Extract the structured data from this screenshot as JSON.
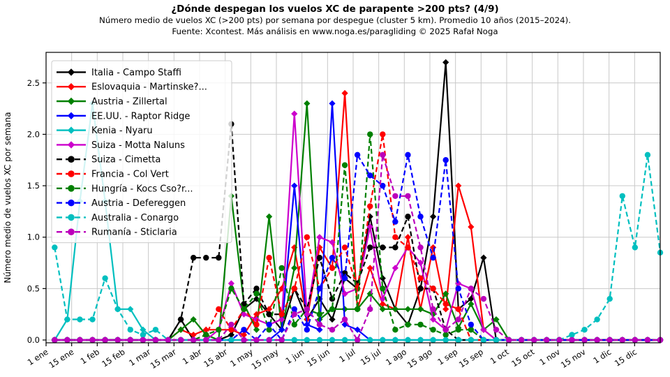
{
  "title": "¿Dónde despegan los vuelos XC de parapente >200 pts? (4/9)",
  "subtitle1": "Número medio de vuelos XC (>200 pts) por semana por despegue (cluster 5 km). Promedio 10 años (2015–2024).",
  "subtitle2": "Fuente: Xcontest. Más análisis en www.noga.es/paragliding © 2025 Rafał Noga",
  "ylabel": "Número medio de vuelos XC por semana",
  "chart_data": {
    "type": "line",
    "grid": true,
    "legend_position": "upper left",
    "ylim": [
      0,
      2.8
    ],
    "y_tick_labels": [
      "0.0",
      "0.5",
      "1.0",
      "1.5",
      "2.0",
      "2.5"
    ],
    "x_tick_labels": [
      "1 ene",
      "15 ene",
      "1 feb",
      "15 feb",
      "1 mar",
      "15 mar",
      "1 abr",
      "15 abr",
      "1 may",
      "15 may",
      "1 jun",
      "15 jun",
      "1 jul",
      "15 jul",
      "1 ago",
      "15 ago",
      "1 sep",
      "15 sep",
      "1 oct",
      "15 oct",
      "1 nov",
      "15 nov",
      "1 dic",
      "15 dic"
    ],
    "x": [
      "1 ene",
      "8 ene",
      "15 ene",
      "22 ene",
      "1 feb",
      "8 feb",
      "15 feb",
      "22 feb",
      "1 mar",
      "8 mar",
      "15 mar",
      "22 mar",
      "1 abr",
      "8 abr",
      "15 abr",
      "22 abr",
      "1 may",
      "8 may",
      "15 may",
      "22 may",
      "1 jun",
      "8 jun",
      "15 jun",
      "22 jun",
      "1 jul",
      "8 jul",
      "15 jul",
      "22 jul",
      "1 ago",
      "8 ago",
      "15 ago",
      "22 ago",
      "1 sep",
      "8 sep",
      "15 sep",
      "22 sep",
      "1 oct",
      "8 oct",
      "15 oct",
      "22 oct",
      "1 nov",
      "8 nov",
      "15 nov",
      "22 nov",
      "1 dic",
      "8 dic",
      "15 dic",
      "22 dic",
      "29 dic"
    ],
    "series": [
      {
        "name": "Italia - Campo Staffi",
        "color": "#000000",
        "style": "solid",
        "marker": "diamond",
        "values": [
          0,
          0,
          0,
          0,
          0,
          0,
          0,
          0,
          0,
          0,
          0.2,
          0,
          0,
          0,
          0.05,
          0.3,
          0.4,
          0.25,
          0.1,
          0.5,
          0.2,
          0.4,
          0.2,
          0.6,
          0.5,
          1.2,
          0.6,
          0.3,
          0.15,
          0.5,
          1.2,
          2.7,
          0.3,
          0.4,
          0.8,
          0,
          0,
          0,
          0,
          0,
          0,
          0,
          0,
          0,
          0,
          0,
          0,
          0,
          0
        ]
      },
      {
        "name": "Eslovaquia - Martinske?...",
        "color": "#ff0000",
        "style": "solid",
        "marker": "diamond",
        "values": [
          0,
          0,
          0,
          0,
          0,
          0,
          0,
          0,
          0,
          0,
          0.1,
          0.05,
          0.1,
          0.1,
          0.1,
          0.05,
          0.25,
          0.3,
          0.5,
          0.9,
          0.2,
          0.9,
          0.7,
          2.4,
          0.3,
          0.7,
          0.35,
          0.3,
          1.0,
          0.3,
          0.9,
          0.3,
          1.5,
          1.1,
          0.1,
          0,
          0,
          0,
          0,
          0,
          0,
          0,
          0,
          0,
          0,
          0,
          0,
          0,
          0
        ]
      },
      {
        "name": "Austria - Zillertal",
        "color": "#008000",
        "style": "solid",
        "marker": "diamond",
        "values": [
          0,
          0,
          0,
          0,
          0,
          0,
          0,
          0,
          0,
          0,
          0.1,
          0.2,
          0.05,
          0,
          1.4,
          0.35,
          0.1,
          1.2,
          0.1,
          0.7,
          2.3,
          0.2,
          0.3,
          0.3,
          0.3,
          0.45,
          0.3,
          0.3,
          0.3,
          0.3,
          0.25,
          0.45,
          0.12,
          0.35,
          0.1,
          0.2,
          0,
          0,
          0,
          0,
          0,
          0,
          0,
          0,
          0,
          0,
          0,
          0,
          0
        ]
      },
      {
        "name": "EE.UU. - Raptor Ridge",
        "color": "#0000ff",
        "style": "solid",
        "marker": "diamond",
        "values": [
          0,
          0,
          0,
          0,
          0,
          0,
          0,
          0,
          0,
          0,
          0,
          0,
          0,
          0,
          0,
          0,
          0,
          0,
          0.1,
          1.5,
          0.15,
          0.1,
          2.3,
          0.15,
          0.1,
          0,
          0,
          0,
          0,
          0,
          0,
          0,
          0,
          0,
          0,
          0,
          0,
          0,
          0,
          0,
          0,
          0,
          0,
          0,
          0,
          0,
          0,
          0,
          0
        ]
      },
      {
        "name": "Kenia - Nyaru",
        "color": "#00bfbf",
        "style": "solid",
        "marker": "diamond",
        "values": [
          0,
          0.2,
          1.35,
          2.3,
          1.35,
          0.3,
          0.3,
          0.1,
          0,
          0,
          0,
          0,
          0,
          0,
          0,
          0,
          0,
          0,
          0,
          0,
          0,
          0,
          0,
          0,
          0,
          0,
          0,
          0,
          0,
          0,
          0,
          0,
          0,
          0,
          0,
          0,
          0,
          0,
          0,
          0,
          0,
          0,
          0,
          0,
          0,
          0,
          0,
          0,
          0
        ]
      },
      {
        "name": "Suiza - Motta Naluns",
        "color": "#cc00cc",
        "style": "solid",
        "marker": "diamond",
        "values": [
          0,
          0,
          0,
          0,
          0,
          0,
          0,
          0,
          0,
          0,
          0,
          0,
          0,
          0.1,
          0.55,
          0.25,
          0.2,
          0.15,
          0.2,
          2.2,
          0.25,
          1.0,
          0.95,
          0.45,
          0.5,
          1.1,
          0.4,
          0.7,
          0.9,
          0.75,
          0.2,
          0.1,
          0.55,
          0.5,
          0.1,
          0,
          0,
          0,
          0,
          0,
          0,
          0,
          0,
          0,
          0,
          0,
          0,
          0,
          0
        ]
      },
      {
        "name": "Suiza - Cimetta",
        "color": "#000000",
        "style": "dashed",
        "marker": "circle",
        "values": [
          0,
          0,
          0,
          0,
          0,
          0,
          0,
          0,
          0,
          0,
          0.2,
          0.8,
          0.8,
          0.8,
          2.1,
          0.35,
          0.5,
          0.25,
          0.25,
          0.5,
          0.3,
          0.8,
          0.4,
          0.65,
          0.55,
          0.9,
          0.9,
          0.9,
          1.2,
          0.5,
          0.5,
          0.1,
          0,
          0,
          0,
          0,
          0,
          0,
          0,
          0,
          0,
          0,
          0,
          0,
          0,
          0,
          0,
          0,
          0
        ]
      },
      {
        "name": "Francia - Col Vert",
        "color": "#ff0000",
        "style": "dashed",
        "marker": "circle",
        "values": [
          0,
          0,
          0,
          0,
          0,
          0,
          0,
          0,
          0,
          0,
          0,
          0,
          0.05,
          0.3,
          0.1,
          0.3,
          0.15,
          0.8,
          0.25,
          0.5,
          1.0,
          0.5,
          0.7,
          0.9,
          0.5,
          1.3,
          2.0,
          1.0,
          0.9,
          0.6,
          0.5,
          0.35,
          0.3,
          0,
          0,
          0,
          0,
          0,
          0,
          0,
          0,
          0,
          0,
          0,
          0,
          0,
          0,
          0,
          0
        ]
      },
      {
        "name": "Hungría - Kocs Cso?r...",
        "color": "#008000",
        "style": "dashed",
        "marker": "circle",
        "values": [
          0,
          0,
          0,
          0,
          0,
          0,
          0,
          0,
          0,
          0,
          0,
          0,
          0.05,
          0.1,
          0.5,
          0.3,
          0.45,
          0.1,
          0.7,
          0.15,
          0.3,
          0.25,
          0.3,
          1.7,
          0.3,
          2.0,
          0.5,
          0.1,
          0.15,
          0.15,
          0.1,
          0.05,
          0.1,
          0.1,
          0,
          0,
          0,
          0,
          0,
          0,
          0,
          0,
          0,
          0,
          0,
          0,
          0,
          0,
          0
        ]
      },
      {
        "name": "Austria - Defereggen",
        "color": "#0000ff",
        "style": "dashed",
        "marker": "circle",
        "values": [
          0,
          0,
          0,
          0,
          0,
          0,
          0,
          0,
          0,
          0,
          0,
          0,
          0,
          0,
          0,
          0.1,
          0,
          0.15,
          0,
          0.3,
          0.1,
          0.5,
          0.8,
          0.6,
          1.8,
          1.6,
          1.5,
          1.15,
          1.8,
          1.2,
          0.8,
          1.75,
          0.5,
          0.15,
          0,
          0,
          0,
          0,
          0,
          0,
          0,
          0,
          0,
          0,
          0,
          0,
          0,
          0,
          0
        ]
      },
      {
        "name": "Australia - Conargo",
        "color": "#00bfbf",
        "style": "dashed",
        "marker": "circle",
        "values": [
          0.9,
          0.2,
          0.2,
          0.2,
          0.6,
          0.3,
          0.1,
          0.05,
          0.1,
          0,
          0,
          0,
          0,
          0,
          0,
          0,
          0,
          0,
          0,
          0,
          0,
          0,
          0,
          0,
          0,
          0,
          0,
          0,
          0,
          0,
          0,
          0,
          0,
          0,
          0,
          0,
          0,
          0,
          0,
          0,
          0,
          0.05,
          0.1,
          0.2,
          0.4,
          1.4,
          0.9,
          1.8,
          0.85
        ]
      },
      {
        "name": "Rumanía - Sticlaria",
        "color": "#bb00bb",
        "style": "dashed",
        "marker": "circle",
        "values": [
          0,
          0,
          0,
          0,
          0,
          0,
          0,
          0,
          0,
          0,
          0,
          0,
          0,
          0,
          0.15,
          0,
          0,
          0,
          0,
          0.25,
          0.3,
          0.15,
          0.1,
          0.2,
          0,
          0.3,
          1.8,
          1.4,
          1.4,
          0.9,
          0.3,
          0.1,
          0.2,
          0.5,
          0.4,
          0.1,
          0,
          0,
          0,
          0,
          0,
          0,
          0,
          0,
          0,
          0,
          0,
          0,
          0
        ]
      }
    ]
  }
}
